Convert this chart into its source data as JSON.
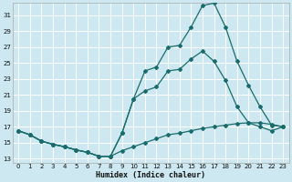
{
  "xlabel": "Humidex (Indice chaleur)",
  "bg_color": "#cde8f0",
  "grid_color": "#ffffff",
  "line_color": "#1a6b6b",
  "xlim": [
    -0.5,
    23.5
  ],
  "ylim": [
    12.5,
    32.5
  ],
  "xticks": [
    0,
    1,
    2,
    3,
    4,
    5,
    6,
    7,
    8,
    9,
    10,
    11,
    12,
    13,
    14,
    15,
    16,
    17,
    18,
    19,
    20,
    21,
    22,
    23
  ],
  "yticks": [
    13,
    15,
    17,
    19,
    21,
    23,
    25,
    27,
    29,
    31
  ],
  "line_top_x": [
    0,
    1,
    2,
    3,
    4,
    5,
    6,
    7,
    8,
    9,
    10,
    11,
    12,
    13,
    14,
    15,
    16,
    17,
    18,
    19,
    20,
    21,
    22,
    23
  ],
  "line_top_y": [
    16.5,
    16.0,
    15.2,
    14.8,
    14.5,
    14.1,
    13.8,
    13.3,
    13.3,
    16.2,
    20.5,
    24.0,
    24.5,
    27.0,
    27.2,
    29.5,
    32.2,
    32.5,
    29.5,
    25.2,
    22.2,
    19.5,
    17.2,
    17.0
  ],
  "line_mid_x": [
    0,
    1,
    2,
    3,
    4,
    5,
    6,
    7,
    8,
    9,
    10,
    11,
    12,
    13,
    14,
    15,
    16,
    17,
    18,
    19,
    20,
    21,
    22,
    23
  ],
  "line_mid_y": [
    16.5,
    16.0,
    15.2,
    14.8,
    14.5,
    14.1,
    13.8,
    13.3,
    13.3,
    16.2,
    20.5,
    21.5,
    22.0,
    24.0,
    24.2,
    25.5,
    26.5,
    25.2,
    22.8,
    19.5,
    17.5,
    17.0,
    16.5,
    17.0
  ],
  "line_bot_x": [
    0,
    1,
    2,
    3,
    4,
    5,
    6,
    7,
    8,
    9,
    10,
    11,
    12,
    13,
    14,
    15,
    16,
    17,
    18,
    19,
    20,
    21,
    22,
    23
  ],
  "line_bot_y": [
    16.5,
    16.0,
    15.2,
    14.8,
    14.5,
    14.1,
    13.8,
    13.3,
    13.3,
    14.0,
    14.5,
    15.0,
    15.5,
    16.0,
    16.2,
    16.5,
    16.8,
    17.0,
    17.2,
    17.4,
    17.5,
    17.5,
    17.3,
    17.0
  ],
  "marker_size": 2.0,
  "linewidth": 0.9,
  "tick_fontsize": 5.0,
  "xlabel_fontsize": 6.0
}
